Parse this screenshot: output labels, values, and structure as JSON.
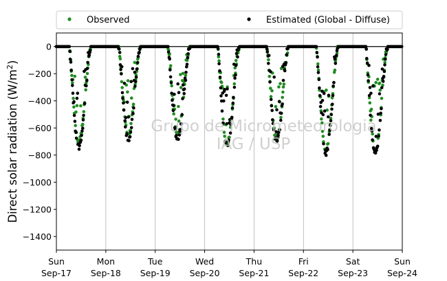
{
  "chart_data": {
    "type": "scatter",
    "title": "",
    "ylabel": "Direct solar radiation (W/m²)",
    "ylabel_base": "Direct solar radiation (W/m",
    "ylabel_sup": "2",
    "ylabel_end": ")",
    "xlabel": "",
    "ylim": [
      -1500,
      100
    ],
    "yticks": [
      0,
      -200,
      -400,
      -600,
      -800,
      -1000,
      -1200,
      -1400
    ],
    "ytick_labels": [
      "0",
      "−200",
      "−400",
      "−600",
      "−800",
      "−1000",
      "−1200",
      "−1400"
    ],
    "xlim": [
      0,
      7
    ],
    "xticks": [
      {
        "day": "Sun",
        "date": "Sep-17"
      },
      {
        "day": "Mon",
        "date": "Sep-18"
      },
      {
        "day": "Tue",
        "date": "Sep-19"
      },
      {
        "day": "Wed",
        "date": "Sep-20"
      },
      {
        "day": "Thu",
        "date": "Sep-21"
      },
      {
        "day": "Fri",
        "date": "Sep-22"
      },
      {
        "day": "Sat",
        "date": "Sep-23"
      },
      {
        "day": "Sun",
        "date": "Sep-24"
      }
    ],
    "grid": "vertical",
    "zero_line": true,
    "legend_position": "top",
    "watermark": [
      "Grupo de Micrometeorologia",
      "IAG / USP"
    ],
    "series": [
      {
        "name": "Observed",
        "color": "#228b22",
        "daily_minimum": [
          -700,
          -650,
          -640,
          -720,
          -680,
          -760,
          -760
        ]
      },
      {
        "name": "Estimated (Global - Diffuse)",
        "color": "#000000",
        "daily_minimum": [
          -740,
          -680,
          -690,
          -730,
          -700,
          -785,
          -780
        ]
      }
    ]
  }
}
